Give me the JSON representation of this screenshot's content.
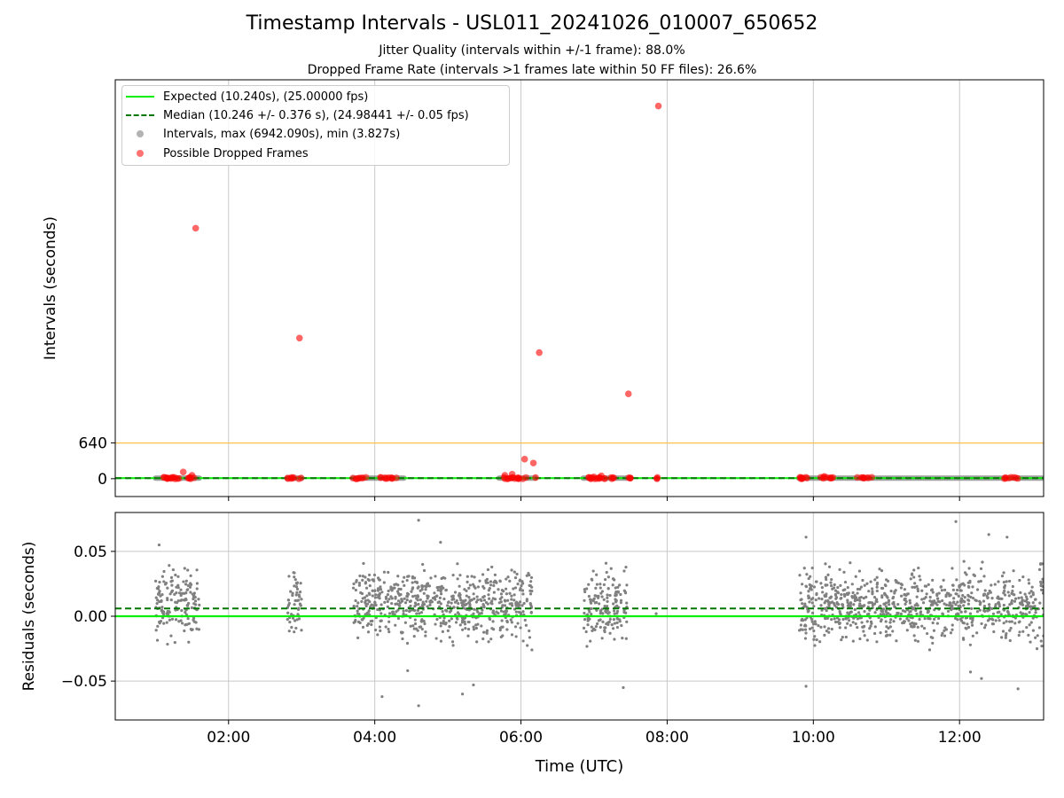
{
  "colors": {
    "expected": "#00ee00",
    "median": "#007700",
    "intervals": "#808080",
    "dropped": "#ff0000",
    "threshold": "#ffc04d",
    "grid": "#c8c8c8"
  },
  "header": {
    "title": "Timestamp Intervals - USL011_20241026_010007_650652",
    "subtitle_1": "Jitter Quality (intervals within +/-1 frame): 88.0%",
    "subtitle_2": "Dropped Frame Rate (intervals >1 frames late within 50 FF files): 26.6%"
  },
  "legend": {
    "expected": "Expected (10.240s), (25.00000 fps)",
    "median": "Median (10.246 +/- 0.376 s), (24.98441 +/- 0.05 fps)",
    "intervals": "Intervals, max (6942.090s), min (3.827s)",
    "dropped": "Possible Dropped Frames"
  },
  "chart_data": [
    {
      "type": "scatter",
      "panel": "top",
      "ylabel": "Intervals (seconds)",
      "xlim_hours": [
        0.45,
        13.15
      ],
      "ylim": [
        -320,
        7150
      ],
      "yticks": [
        {
          "value": 0,
          "label": "0"
        },
        {
          "value": 640,
          "label": "640"
        }
      ],
      "xticks_hours": [
        2,
        4,
        6,
        8,
        10,
        12
      ],
      "grid": "x only",
      "legend_position": "top-left",
      "expected_interval": 10.24,
      "median_interval": 10.246,
      "threshold_line": 640,
      "data_segments_hours": [
        [
          1.0,
          1.6
        ],
        [
          2.8,
          3.0
        ],
        [
          3.7,
          4.4
        ],
        [
          5.7,
          6.2
        ],
        [
          6.85,
          7.45
        ],
        [
          9.8,
          13.15
        ]
      ],
      "series": [
        {
          "name": "Possible Dropped Frames",
          "points": [
            [
              1.55,
              4490
            ],
            [
              2.97,
              2520
            ],
            [
              6.25,
              2260
            ],
            [
              7.47,
              1520
            ],
            [
              7.88,
              6680
            ],
            [
              6.05,
              350
            ],
            [
              6.17,
              280
            ],
            [
              1.38,
              120
            ],
            [
              5.88,
              80
            ],
            [
              5.78,
              60
            ],
            [
              7.1,
              50
            ],
            [
              10.15,
              40
            ],
            [
              1.5,
              60
            ],
            [
              7.0,
              30
            ],
            [
              6.2,
              20
            ]
          ],
          "clusters_hours": [
            [
              1.1,
              1.6
            ],
            [
              2.8,
              3.0
            ],
            [
              3.7,
              3.9
            ],
            [
              4.05,
              4.3
            ],
            [
              5.75,
              6.1
            ],
            [
              6.9,
              7.3
            ],
            [
              7.4,
              7.5
            ],
            [
              7.85,
              7.9
            ],
            [
              9.8,
              10.0
            ],
            [
              10.1,
              10.3
            ],
            [
              10.6,
              10.8
            ],
            [
              12.6,
              12.8
            ]
          ]
        }
      ]
    },
    {
      "type": "scatter",
      "panel": "bottom",
      "xlabel": "Time (UTC)",
      "ylabel": "Residuals (seconds)",
      "xlim_hours": [
        0.45,
        13.15
      ],
      "ylim": [
        -0.08,
        0.08
      ],
      "yticks": [
        {
          "value": 0.05,
          "label": "0.05"
        },
        {
          "value": 0.0,
          "label": "0.00"
        },
        {
          "value": -0.05,
          "label": "−0.05"
        }
      ],
      "xticks": [
        {
          "value": 2,
          "label": "02:00"
        },
        {
          "value": 4,
          "label": "04:00"
        },
        {
          "value": 6,
          "label": "06:00"
        },
        {
          "value": 8,
          "label": "08:00"
        },
        {
          "value": 10,
          "label": "10:00"
        },
        {
          "value": 12,
          "label": "12:00"
        }
      ],
      "grid": "both",
      "expected_residual": 0.0,
      "median_residual": 0.006,
      "residual_band": [
        -0.03,
        0.047
      ],
      "data_segments_hours": [
        [
          1.0,
          1.6
        ],
        [
          2.8,
          3.0
        ],
        [
          3.7,
          6.15
        ],
        [
          6.85,
          7.45
        ],
        [
          9.8,
          13.15
        ]
      ],
      "outliers": [
        [
          1.05,
          0.055
        ],
        [
          4.6,
          0.074
        ],
        [
          4.1,
          -0.062
        ],
        [
          4.6,
          -0.069
        ],
        [
          5.2,
          -0.06
        ],
        [
          5.35,
          -0.053
        ],
        [
          4.45,
          -0.042
        ],
        [
          7.4,
          -0.055
        ],
        [
          9.9,
          -0.054
        ],
        [
          9.9,
          0.061
        ],
        [
          11.95,
          0.073
        ],
        [
          12.4,
          0.063
        ],
        [
          12.65,
          0.061
        ],
        [
          12.8,
          -0.056
        ],
        [
          12.3,
          -0.048
        ],
        [
          12.15,
          -0.043
        ],
        [
          4.9,
          0.057
        ],
        [
          7.85,
          0.002
        ],
        [
          6.15,
          -0.026
        ]
      ]
    }
  ]
}
